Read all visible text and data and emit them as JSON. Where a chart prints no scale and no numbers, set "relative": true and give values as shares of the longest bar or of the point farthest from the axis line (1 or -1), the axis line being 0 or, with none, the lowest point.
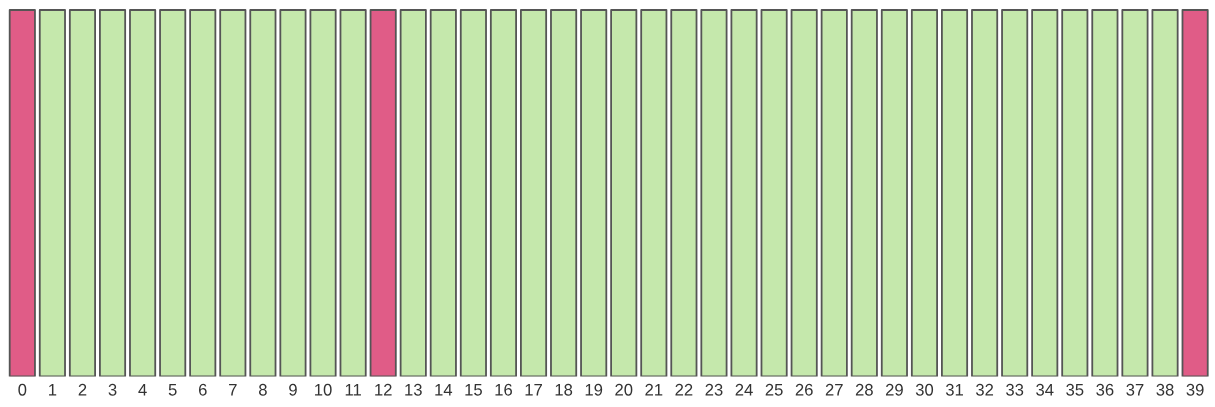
{
  "chart_data": {
    "type": "bar",
    "relative": true,
    "categories": [
      "0",
      "1",
      "2",
      "3",
      "4",
      "5",
      "6",
      "7",
      "8",
      "9",
      "10",
      "11",
      "12",
      "13",
      "14",
      "15",
      "16",
      "17",
      "18",
      "19",
      "20",
      "21",
      "22",
      "23",
      "24",
      "25",
      "26",
      "27",
      "28",
      "29",
      "30",
      "31",
      "32",
      "33",
      "34",
      "35",
      "36",
      "37",
      "38",
      "39"
    ],
    "values": [
      1,
      1,
      1,
      1,
      1,
      1,
      1,
      1,
      1,
      1,
      1,
      1,
      1,
      1,
      1,
      1,
      1,
      1,
      1,
      1,
      1,
      1,
      1,
      1,
      1,
      1,
      1,
      1,
      1,
      1,
      1,
      1,
      1,
      1,
      1,
      1,
      1,
      1,
      1,
      1
    ],
    "colors": [
      "#e05c87",
      "#c5e8ac",
      "#c5e8ac",
      "#c5e8ac",
      "#c5e8ac",
      "#c5e8ac",
      "#c5e8ac",
      "#c5e8ac",
      "#c5e8ac",
      "#c5e8ac",
      "#c5e8ac",
      "#c5e8ac",
      "#e05c87",
      "#c5e8ac",
      "#c5e8ac",
      "#c5e8ac",
      "#c5e8ac",
      "#c5e8ac",
      "#c5e8ac",
      "#c5e8ac",
      "#c5e8ac",
      "#c5e8ac",
      "#c5e8ac",
      "#c5e8ac",
      "#c5e8ac",
      "#c5e8ac",
      "#c5e8ac",
      "#c5e8ac",
      "#c5e8ac",
      "#c5e8ac",
      "#c5e8ac",
      "#c5e8ac",
      "#c5e8ac",
      "#c5e8ac",
      "#c5e8ac",
      "#c5e8ac",
      "#c5e8ac",
      "#c5e8ac",
      "#c5e8ac",
      "#e05c87"
    ],
    "grid": false,
    "legend": false
  }
}
